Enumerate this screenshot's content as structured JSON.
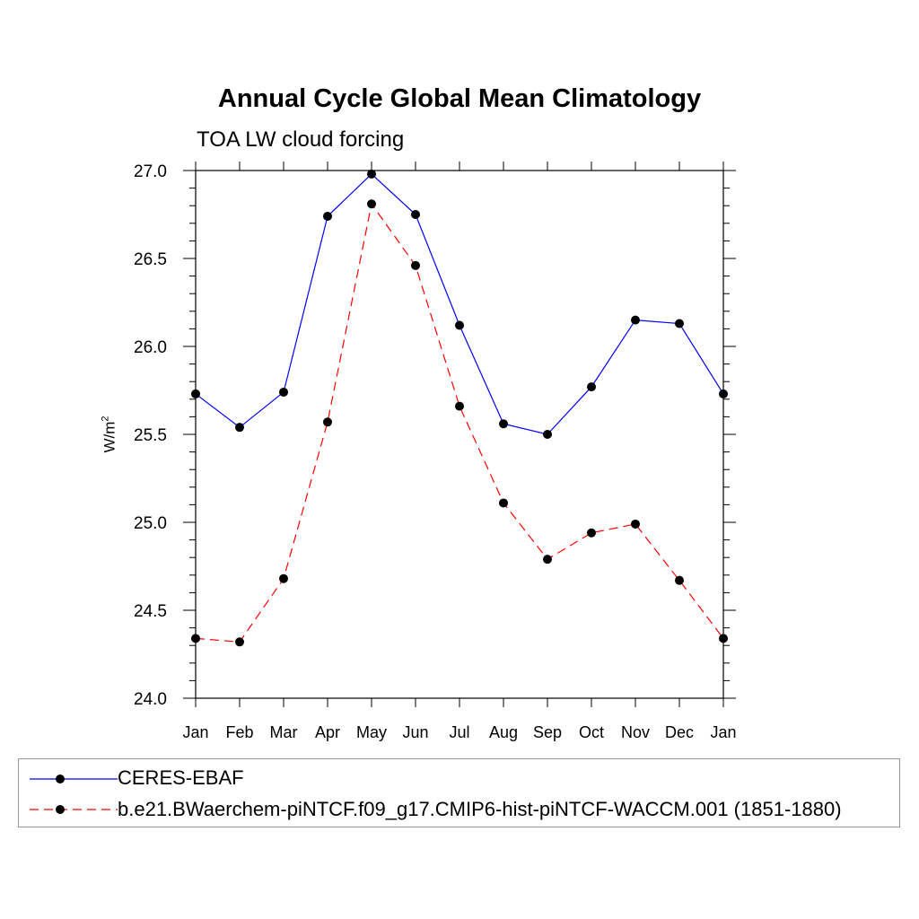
{
  "chart_data": {
    "type": "line",
    "title": "Annual Cycle Global Mean Climatology",
    "subtitle": "TOA LW cloud forcing",
    "xlabel": "",
    "ylabel": "W/m",
    "ylabel_sup": "2",
    "categories": [
      "Jan",
      "Feb",
      "Mar",
      "Apr",
      "May",
      "Jun",
      "Jul",
      "Aug",
      "Sep",
      "Oct",
      "Nov",
      "Dec",
      "Jan"
    ],
    "ylim": [
      24.0,
      27.0
    ],
    "yticks": [
      24.0,
      24.5,
      25.0,
      25.5,
      26.0,
      26.5,
      27.0
    ],
    "ytick_labels": [
      "24.0",
      "24.5",
      "25.0",
      "25.5",
      "26.0",
      "26.5",
      "27.0"
    ],
    "series": [
      {
        "name": "CERES-EBAF",
        "color": "#0000ff",
        "style": "solid",
        "values": [
          25.73,
          25.54,
          25.74,
          26.74,
          26.98,
          26.75,
          26.12,
          25.56,
          25.5,
          25.77,
          26.15,
          26.13,
          25.73
        ]
      },
      {
        "name": "b.e21.BWaerchem-piNTCF.f09_g17.CMIP6-hist-piNTCF-WACCM.001 (1851-1880)",
        "color": "#ff0000",
        "style": "dashed",
        "values": [
          24.34,
          24.32,
          24.68,
          25.57,
          26.81,
          26.46,
          25.66,
          25.11,
          24.79,
          24.94,
          24.99,
          24.67,
          24.34
        ]
      }
    ],
    "legend_position": "bottom"
  }
}
